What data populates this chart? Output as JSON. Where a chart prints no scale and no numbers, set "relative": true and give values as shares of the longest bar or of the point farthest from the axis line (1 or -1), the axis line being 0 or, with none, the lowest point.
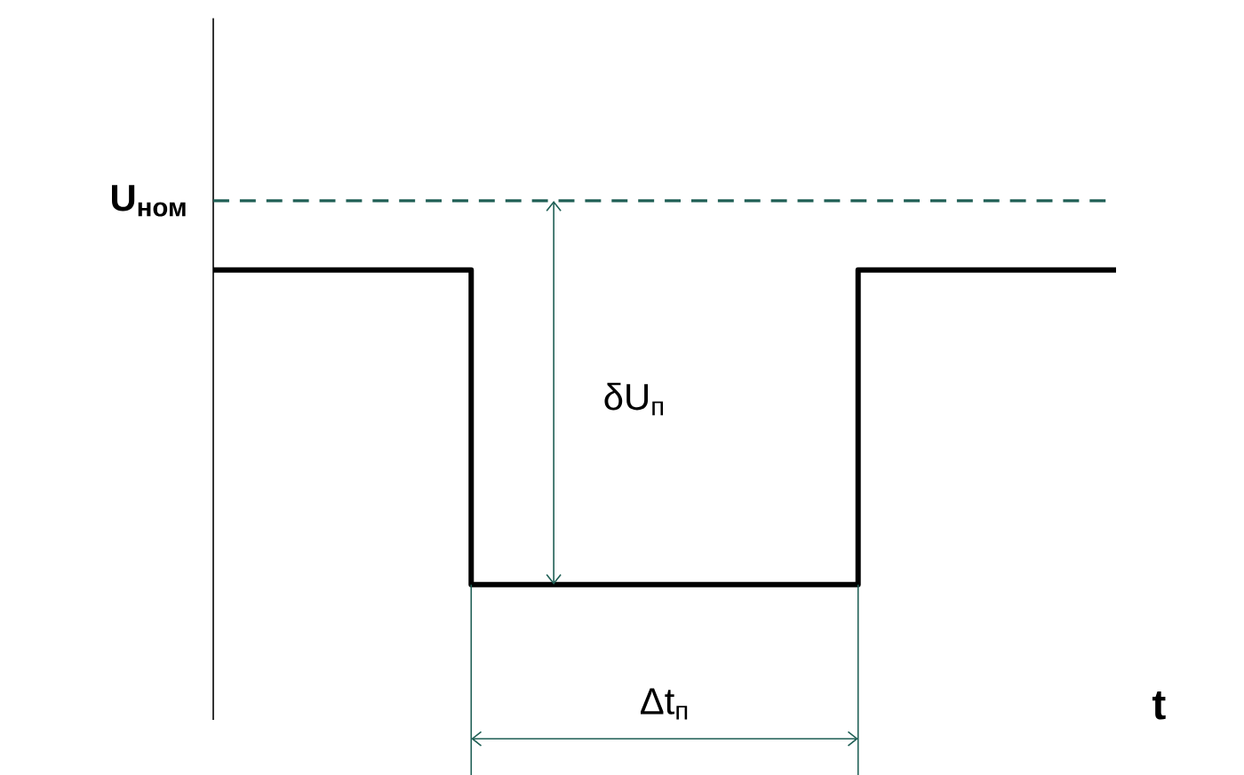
{
  "chart_data": {
    "type": "step",
    "relative": true,
    "xlabel": "t",
    "marker": "none",
    "line_style": "solid",
    "categories": [
      null,
      null,
      null,
      null,
      null,
      null,
      null,
      null
    ],
    "series": [
      {
        "color": "#000000",
        "values": [
          1,
          1,
          0,
          0,
          0,
          1,
          1,
          1
        ]
      }
    ],
    "ref_lines": [
      {
        "axis": "y",
        "value": 1.22,
        "label": "U$_{ном}$",
        "color": "#1f5f55",
        "line_style": "dashed"
      }
    ],
    "annotations": [
      "δU$_{п}$",
      "Δt$_{п}$"
    ]
  }
}
